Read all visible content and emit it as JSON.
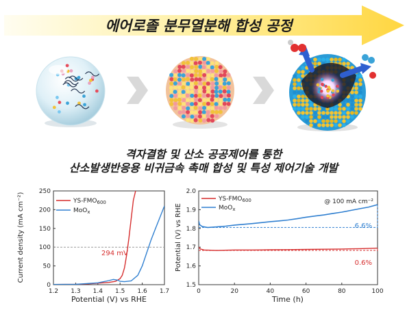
{
  "banner": {
    "title": "에어로졸 분무열분해 합성 공정"
  },
  "caption": {
    "line1": "격자결함 및 산소 공공제어를 통한",
    "line2": "산소발생반응용 비귀금속 촉매 합성 및 특성 제어기술 개발"
  },
  "colors": {
    "ys_fmo": "#d62d2d",
    "moox": "#2f7fd0",
    "banner_start": "#fff7c9",
    "banner_end": "#ffd84a"
  },
  "chart_data": [
    {
      "type": "line",
      "xlabel": "Potential (V) vs RHE",
      "ylabel": "Current density (mA cm⁻²)",
      "xlim": [
        1.2,
        1.7
      ],
      "ylim": [
        0,
        250
      ],
      "xticks": [
        "1.2",
        "1.3",
        "1.4",
        "1.5",
        "1.6",
        "1.7"
      ],
      "yticks": [
        "0",
        "50",
        "100",
        "150",
        "200",
        "250"
      ],
      "reference_line": {
        "y": 100
      },
      "annotation": "294 mV",
      "legend": {
        "placement": "top-left",
        "entries": [
          "YS-FMO600",
          "MoOx"
        ]
      },
      "series": [
        {
          "name": "YS-FMO600",
          "x": [
            1.2,
            1.3,
            1.35,
            1.4,
            1.45,
            1.48,
            1.5,
            1.51,
            1.52,
            1.53,
            1.54,
            1.55,
            1.56,
            1.57
          ],
          "y": [
            0.5,
            1,
            2,
            4,
            6,
            9,
            16,
            25,
            45,
            80,
            125,
            175,
            225,
            260
          ]
        },
        {
          "name": "MoOx",
          "x": [
            1.2,
            1.3,
            1.4,
            1.45,
            1.47,
            1.49,
            1.5,
            1.52,
            1.55,
            1.58,
            1.6,
            1.62,
            1.64,
            1.66,
            1.68,
            1.7
          ],
          "y": [
            0.5,
            1,
            5,
            11,
            14,
            12,
            9,
            8,
            10,
            25,
            50,
            85,
            120,
            150,
            180,
            210
          ]
        }
      ]
    },
    {
      "type": "line",
      "xlabel": "Time (h)",
      "ylabel": "Potential (V) vs RHE",
      "xlim": [
        0,
        100
      ],
      "ylim": [
        1.5,
        2.0
      ],
      "xticks": [
        "0",
        "20",
        "40",
        "60",
        "80",
        "100"
      ],
      "yticks": [
        "1.5",
        "1.6",
        "1.7",
        "1.8",
        "1.9",
        "2.0"
      ],
      "annotation_top": "@ 100 mA cm⁻²",
      "labels": {
        "moox_change": "6.6%",
        "ys_change": "0.6%"
      },
      "legend": {
        "placement": "top-left",
        "entries": [
          "YS-FMO600",
          "MoOx"
        ]
      },
      "series": [
        {
          "name": "YS-FMO600",
          "x": [
            0,
            1,
            3,
            10,
            20,
            30,
            40,
            50,
            60,
            70,
            80,
            90,
            100
          ],
          "y": [
            1.7,
            1.69,
            1.685,
            1.683,
            1.685,
            1.685,
            1.686,
            1.687,
            1.688,
            1.689,
            1.69,
            1.692,
            1.695
          ]
        },
        {
          "name": "MoOx",
          "x": [
            0,
            0.5,
            2,
            5,
            10,
            15,
            20,
            25,
            30,
            35,
            40,
            45,
            50,
            55,
            60,
            65,
            70,
            75,
            80,
            85,
            90,
            95,
            100
          ],
          "y": [
            1.84,
            1.82,
            1.81,
            1.805,
            1.808,
            1.812,
            1.818,
            1.822,
            1.826,
            1.831,
            1.836,
            1.84,
            1.845,
            1.852,
            1.86,
            1.866,
            1.872,
            1.88,
            1.887,
            1.896,
            1.905,
            1.914,
            1.927
          ]
        }
      ]
    }
  ]
}
